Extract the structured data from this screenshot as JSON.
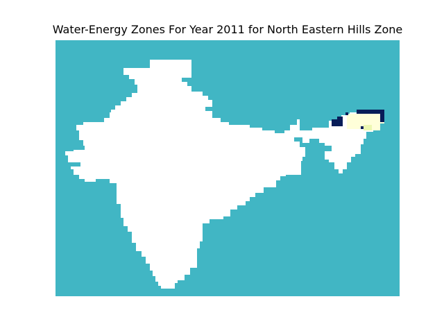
{
  "figure": {
    "title": "Water-Energy Zones For Year 2011 for North Eastern Hills Zone"
  },
  "colors": {
    "background": "#41b6c4",
    "land": "#ffffff",
    "zone_light": "#ffffd9",
    "zone_mid": "#edf8b1",
    "zone_dark": "#081d58"
  },
  "map": {
    "region": "India",
    "highlighted_zone": "North Eastern Hills Zone"
  }
}
